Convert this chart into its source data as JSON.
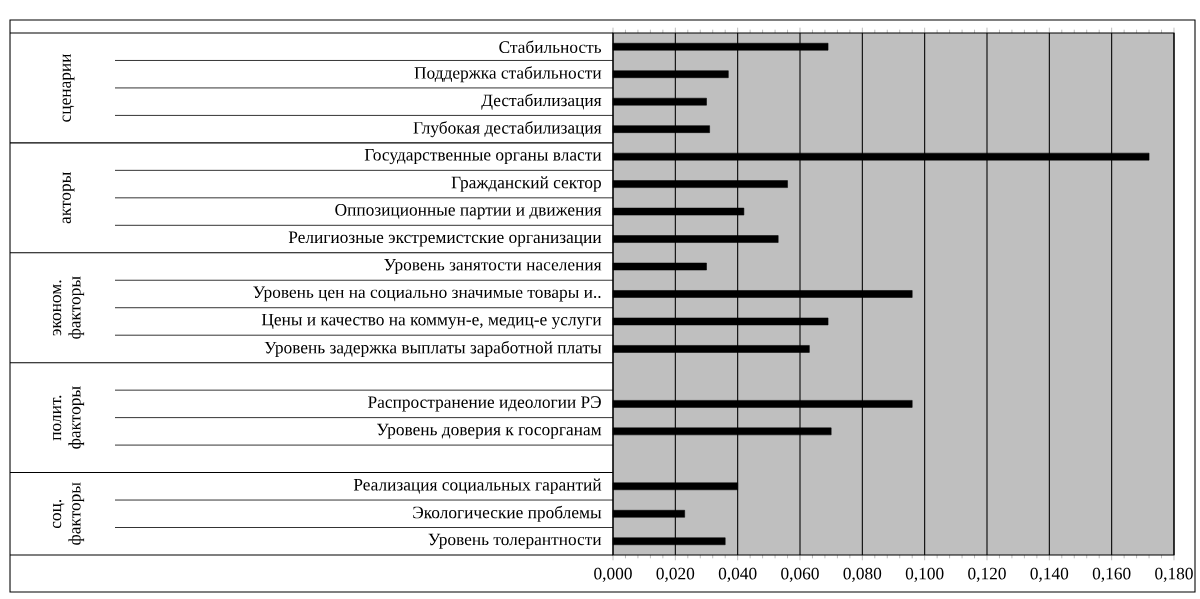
{
  "chart_data": {
    "type": "bar",
    "orientation": "horizontal",
    "categories": [
      "Стабильность",
      "Поддержка стабильности",
      "Дестабилизация",
      "Глубокая дестабилизация",
      "Государственные органы власти",
      "Гражданский сектор",
      "Оппозиционные партии и движения",
      "Религиозные экстремистские организации",
      "Уровень занятости населения",
      "Уровень цен на социально значимые товары и..",
      "Цены и качество на коммун-е, медиц-е услуги",
      "Уровень задержка выплаты заработной платы",
      null,
      "Распространение идеологии РЭ",
      "Уровень доверия к госорганам",
      null,
      "Реализация социальных гарантий",
      "Экологические проблемы",
      "Уровень толерантности"
    ],
    "values": [
      0.069,
      0.037,
      0.03,
      0.031,
      0.172,
      0.056,
      0.042,
      0.053,
      0.03,
      0.096,
      0.069,
      0.063,
      null,
      0.096,
      0.07,
      null,
      0.04,
      0.023,
      0.036
    ],
    "color": "#000000",
    "xlim": [
      0,
      0.18
    ],
    "xticks": [
      {
        "value": 0,
        "label": "0,000"
      },
      {
        "value": 0.02,
        "label": "0,020"
      },
      {
        "value": 0.04,
        "label": "0,040"
      },
      {
        "value": 0.06,
        "label": "0,060"
      },
      {
        "value": 0.08,
        "label": "0,080"
      },
      {
        "value": 0.1,
        "label": "0,100"
      },
      {
        "value": 0.12,
        "label": "0,120"
      },
      {
        "value": 0.14,
        "label": "0,140"
      },
      {
        "value": 0.16,
        "label": "0,160"
      },
      {
        "value": 0.18,
        "label": "0,180"
      }
    ],
    "grid": "x",
    "annotations": [
      "сценарии",
      "акторы",
      "эконом. факторы",
      "полит. факторы",
      "соц. факторы"
    ]
  }
}
